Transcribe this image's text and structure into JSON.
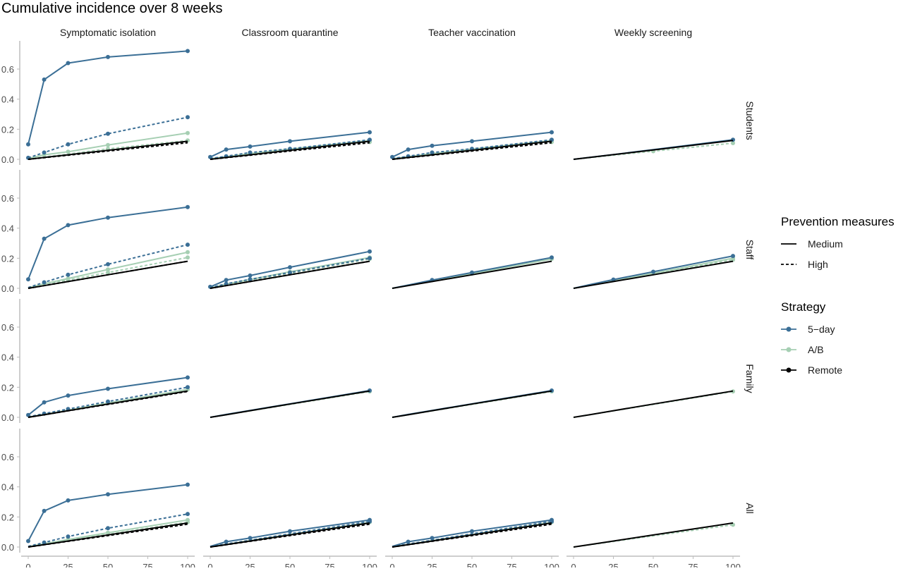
{
  "chart_data": {
    "type": "line",
    "title": "Cumulative incidence over 8 weeks",
    "x": [
      0,
      10,
      25,
      50,
      100
    ],
    "x_ticks": [
      "0",
      "25",
      "50",
      "75",
      "100"
    ],
    "xlim": [
      0,
      100
    ],
    "y_ticks": [
      "0.0",
      "0.2",
      "0.4",
      "0.6"
    ],
    "ylim": [
      0,
      0.75
    ],
    "grid": false,
    "legend_position": "right",
    "facet_columns": [
      "Symptomatic isolation",
      "Classroom quarantine",
      "Teacher vaccination",
      "Weekly screening"
    ],
    "facet_rows": [
      "Students",
      "Staff",
      "Family",
      "All"
    ],
    "legend": {
      "linetype_title": "Prevention measures",
      "linetype_items": [
        "Medium",
        "High"
      ],
      "color_title": "Strategy",
      "color_items": [
        "5−day",
        "A/B",
        "Remote"
      ]
    },
    "colors": {
      "5-day": "#3b6f96",
      "A/B": "#a6cfb3",
      "Remote": "#000000"
    },
    "panels": [
      {
        "row": "Students",
        "column": "Symptomatic isolation",
        "series": [
          {
            "strategy": "5-day",
            "measures": "Medium",
            "values": [
              0.1,
              0.53,
              0.64,
              0.68,
              0.72
            ]
          },
          {
            "strategy": "5-day",
            "measures": "High",
            "values": [
              0.01,
              0.045,
              0.1,
              0.17,
              0.28
            ]
          },
          {
            "strategy": "A/B",
            "measures": "Medium",
            "values": [
              0.005,
              0.03,
              0.05,
              0.095,
              0.175
            ]
          },
          {
            "strategy": "A/B",
            "measures": "High",
            "values": [
              0.002,
              0.015,
              0.035,
              0.07,
              0.125
            ]
          },
          {
            "strategy": "Remote",
            "measures": "Medium",
            "values": [
              0.0,
              0.012,
              0.03,
              0.06,
              0.12
            ]
          },
          {
            "strategy": "Remote",
            "measures": "High",
            "values": [
              0.0,
              0.011,
              0.027,
              0.055,
              0.11
            ]
          }
        ]
      },
      {
        "row": "Students",
        "column": "Classroom quarantine",
        "series": [
          {
            "strategy": "5-day",
            "measures": "Medium",
            "values": [
              0.015,
              0.065,
              0.085,
              0.12,
              0.18
            ]
          },
          {
            "strategy": "5-day",
            "measures": "High",
            "values": [
              0.005,
              0.02,
              0.045,
              0.07,
              0.13
            ]
          },
          {
            "strategy": "A/B",
            "measures": "Medium",
            "values": [
              0.004,
              0.018,
              0.038,
              0.068,
              0.125
            ]
          },
          {
            "strategy": "A/B",
            "measures": "High",
            "values": [
              0.002,
              0.013,
              0.03,
              0.058,
              0.115
            ]
          },
          {
            "strategy": "Remote",
            "measures": "Medium",
            "values": [
              0.0,
              0.012,
              0.03,
              0.06,
              0.12
            ]
          },
          {
            "strategy": "Remote",
            "measures": "High",
            "values": [
              0.0,
              0.011,
              0.027,
              0.055,
              0.11
            ]
          }
        ]
      },
      {
        "row": "Students",
        "column": "Teacher vaccination",
        "series": [
          {
            "strategy": "5-day",
            "measures": "Medium",
            "values": [
              0.015,
              0.065,
              0.09,
              0.12,
              0.18
            ]
          },
          {
            "strategy": "5-day",
            "measures": "High",
            "values": [
              0.005,
              0.02,
              0.045,
              0.07,
              0.13
            ]
          },
          {
            "strategy": "A/B",
            "measures": "Medium",
            "values": [
              0.004,
              0.018,
              0.038,
              0.068,
              0.125
            ]
          },
          {
            "strategy": "A/B",
            "measures": "High",
            "values": [
              0.002,
              0.013,
              0.03,
              0.058,
              0.115
            ]
          },
          {
            "strategy": "Remote",
            "measures": "Medium",
            "values": [
              0.0,
              0.012,
              0.03,
              0.06,
              0.12
            ]
          },
          {
            "strategy": "Remote",
            "measures": "High",
            "values": [
              0.0,
              0.011,
              0.027,
              0.055,
              0.11
            ]
          }
        ]
      },
      {
        "row": "Students",
        "column": "Weekly screening",
        "series": [
          {
            "strategy": "5-day",
            "measures": "Medium",
            "values": [
              0.0,
              0.013,
              0.032,
              0.064,
              0.13
            ]
          },
          {
            "strategy": "A/B",
            "measures": "High",
            "values": [
              0.0,
              0.011,
              0.027,
              0.054,
              0.108
            ]
          },
          {
            "strategy": "Remote",
            "measures": "Medium",
            "values": [
              0.0,
              0.012,
              0.031,
              0.062,
              0.125
            ]
          }
        ]
      },
      {
        "row": "Staff",
        "column": "Symptomatic isolation",
        "series": [
          {
            "strategy": "5-day",
            "measures": "Medium",
            "values": [
              0.06,
              0.33,
              0.42,
              0.47,
              0.54
            ]
          },
          {
            "strategy": "5-day",
            "measures": "High",
            "values": [
              0.005,
              0.04,
              0.09,
              0.16,
              0.29
            ]
          },
          {
            "strategy": "A/B",
            "measures": "Medium",
            "values": [
              0.004,
              0.03,
              0.065,
              0.125,
              0.24
            ]
          },
          {
            "strategy": "A/B",
            "measures": "High",
            "values": [
              0.002,
              0.025,
              0.055,
              0.105,
              0.205
            ]
          },
          {
            "strategy": "Remote",
            "measures": "Medium",
            "values": [
              0.0,
              0.018,
              0.045,
              0.09,
              0.18
            ]
          },
          {
            "strategy": "Remote",
            "measures": "High",
            "values": [
              0.0,
              0.018,
              0.045,
              0.09,
              0.18
            ]
          }
        ]
      },
      {
        "row": "Staff",
        "column": "Classroom quarantine",
        "series": [
          {
            "strategy": "5-day",
            "measures": "Medium",
            "values": [
              0.01,
              0.055,
              0.085,
              0.14,
              0.245
            ]
          },
          {
            "strategy": "5-day",
            "measures": "High",
            "values": [
              0.004,
              0.03,
              0.06,
              0.105,
              0.2
            ]
          },
          {
            "strategy": "A/B",
            "measures": "Medium",
            "values": [
              0.003,
              0.028,
              0.058,
              0.11,
              0.205
            ]
          },
          {
            "strategy": "A/B",
            "measures": "High",
            "values": [
              0.002,
              0.024,
              0.052,
              0.1,
              0.195
            ]
          },
          {
            "strategy": "Remote",
            "measures": "Medium",
            "values": [
              0.0,
              0.018,
              0.045,
              0.09,
              0.18
            ]
          },
          {
            "strategy": "Remote",
            "measures": "High",
            "values": [
              0.0,
              0.018,
              0.045,
              0.09,
              0.18
            ]
          }
        ]
      },
      {
        "row": "Staff",
        "column": "Teacher vaccination",
        "series": [
          {
            "strategy": "5-day",
            "measures": "Medium",
            "values": [
              0.0,
              0.022,
              0.055,
              0.105,
              0.205
            ]
          },
          {
            "strategy": "A/B",
            "measures": "Medium",
            "values": [
              0.0,
              0.02,
              0.05,
              0.098,
              0.195
            ]
          },
          {
            "strategy": "Remote",
            "measures": "Medium",
            "values": [
              0.0,
              0.018,
              0.045,
              0.09,
              0.18
            ]
          }
        ]
      },
      {
        "row": "Staff",
        "column": "Weekly screening",
        "series": [
          {
            "strategy": "5-day",
            "measures": "Medium",
            "values": [
              0.0,
              0.024,
              0.058,
              0.11,
              0.215
            ]
          },
          {
            "strategy": "A/B",
            "measures": "Medium",
            "values": [
              0.0,
              0.021,
              0.052,
              0.1,
              0.2
            ]
          },
          {
            "strategy": "A/B",
            "measures": "High",
            "values": [
              0.0,
              0.02,
              0.05,
              0.096,
              0.19
            ]
          },
          {
            "strategy": "Remote",
            "measures": "Medium",
            "values": [
              0.0,
              0.018,
              0.045,
              0.09,
              0.18
            ]
          }
        ]
      },
      {
        "row": "Family",
        "column": "Symptomatic isolation",
        "series": [
          {
            "strategy": "5-day",
            "measures": "Medium",
            "values": [
              0.015,
              0.1,
              0.145,
              0.19,
              0.265
            ]
          },
          {
            "strategy": "5-day",
            "measures": "High",
            "values": [
              0.003,
              0.025,
              0.055,
              0.105,
              0.2
            ]
          },
          {
            "strategy": "A/B",
            "measures": "Medium",
            "values": [
              0.002,
              0.02,
              0.048,
              0.095,
              0.185
            ]
          },
          {
            "strategy": "Remote",
            "measures": "Medium",
            "values": [
              0.0,
              0.017,
              0.044,
              0.088,
              0.175
            ]
          },
          {
            "strategy": "Remote",
            "measures": "High",
            "values": [
              0.0,
              0.017,
              0.043,
              0.086,
              0.172
            ]
          }
        ]
      },
      {
        "row": "Family",
        "column": "Classroom quarantine",
        "series": [
          {
            "strategy": "5-day",
            "measures": "Medium",
            "values": [
              0.0,
              0.019,
              0.046,
              0.09,
              0.178
            ]
          },
          {
            "strategy": "A/B",
            "measures": "High",
            "values": [
              0.0,
              0.017,
              0.043,
              0.086,
              0.172
            ]
          },
          {
            "strategy": "Remote",
            "measures": "Medium",
            "values": [
              0.0,
              0.017,
              0.044,
              0.088,
              0.175
            ]
          }
        ]
      },
      {
        "row": "Family",
        "column": "Teacher vaccination",
        "series": [
          {
            "strategy": "5-day",
            "measures": "Medium",
            "values": [
              0.0,
              0.019,
              0.046,
              0.09,
              0.178
            ]
          },
          {
            "strategy": "A/B",
            "measures": "High",
            "values": [
              0.0,
              0.017,
              0.043,
              0.086,
              0.172
            ]
          },
          {
            "strategy": "Remote",
            "measures": "Medium",
            "values": [
              0.0,
              0.017,
              0.044,
              0.088,
              0.175
            ]
          }
        ]
      },
      {
        "row": "Family",
        "column": "Weekly screening",
        "series": [
          {
            "strategy": "A/B",
            "measures": "High",
            "values": [
              0.0,
              0.017,
              0.043,
              0.086,
              0.172
            ]
          },
          {
            "strategy": "Remote",
            "measures": "Medium",
            "values": [
              0.0,
              0.017,
              0.044,
              0.088,
              0.175
            ]
          }
        ]
      },
      {
        "row": "All",
        "column": "Symptomatic isolation",
        "series": [
          {
            "strategy": "5-day",
            "measures": "Medium",
            "values": [
              0.04,
              0.24,
              0.31,
              0.35,
              0.415
            ]
          },
          {
            "strategy": "5-day",
            "measures": "High",
            "values": [
              0.004,
              0.03,
              0.07,
              0.125,
              0.22
            ]
          },
          {
            "strategy": "A/B",
            "measures": "Medium",
            "values": [
              0.003,
              0.022,
              0.05,
              0.095,
              0.18
            ]
          },
          {
            "strategy": "A/B",
            "measures": "High",
            "values": [
              0.002,
              0.018,
              0.044,
              0.085,
              0.165
            ]
          },
          {
            "strategy": "Remote",
            "measures": "Medium",
            "values": [
              0.0,
              0.016,
              0.04,
              0.08,
              0.16
            ]
          },
          {
            "strategy": "Remote",
            "measures": "High",
            "values": [
              0.0,
              0.015,
              0.038,
              0.076,
              0.152
            ]
          }
        ]
      },
      {
        "row": "All",
        "column": "Classroom quarantine",
        "series": [
          {
            "strategy": "5-day",
            "measures": "Medium",
            "values": [
              0.004,
              0.035,
              0.06,
              0.105,
              0.18
            ]
          },
          {
            "strategy": "5-day",
            "measures": "High",
            "values": [
              0.002,
              0.02,
              0.045,
              0.088,
              0.17
            ]
          },
          {
            "strategy": "A/B",
            "measures": "Medium",
            "values": [
              0.002,
              0.018,
              0.043,
              0.084,
              0.165
            ]
          },
          {
            "strategy": "Remote",
            "measures": "Medium",
            "values": [
              0.0,
              0.016,
              0.04,
              0.08,
              0.16
            ]
          },
          {
            "strategy": "Remote",
            "measures": "High",
            "values": [
              0.0,
              0.015,
              0.038,
              0.076,
              0.152
            ]
          }
        ]
      },
      {
        "row": "All",
        "column": "Teacher vaccination",
        "series": [
          {
            "strategy": "5-day",
            "measures": "Medium",
            "values": [
              0.004,
              0.035,
              0.06,
              0.105,
              0.18
            ]
          },
          {
            "strategy": "5-day",
            "measures": "High",
            "values": [
              0.002,
              0.02,
              0.045,
              0.088,
              0.17
            ]
          },
          {
            "strategy": "A/B",
            "measures": "Medium",
            "values": [
              0.002,
              0.018,
              0.043,
              0.084,
              0.165
            ]
          },
          {
            "strategy": "Remote",
            "measures": "Medium",
            "values": [
              0.0,
              0.016,
              0.04,
              0.08,
              0.16
            ]
          },
          {
            "strategy": "Remote",
            "measures": "High",
            "values": [
              0.0,
              0.015,
              0.038,
              0.076,
              0.152
            ]
          }
        ]
      },
      {
        "row": "All",
        "column": "Weekly screening",
        "series": [
          {
            "strategy": "A/B",
            "measures": "High",
            "values": [
              0.0,
              0.015,
              0.037,
              0.074,
              0.148
            ]
          },
          {
            "strategy": "Remote",
            "measures": "Medium",
            "values": [
              0.0,
              0.016,
              0.04,
              0.08,
              0.16
            ]
          }
        ]
      }
    ]
  }
}
